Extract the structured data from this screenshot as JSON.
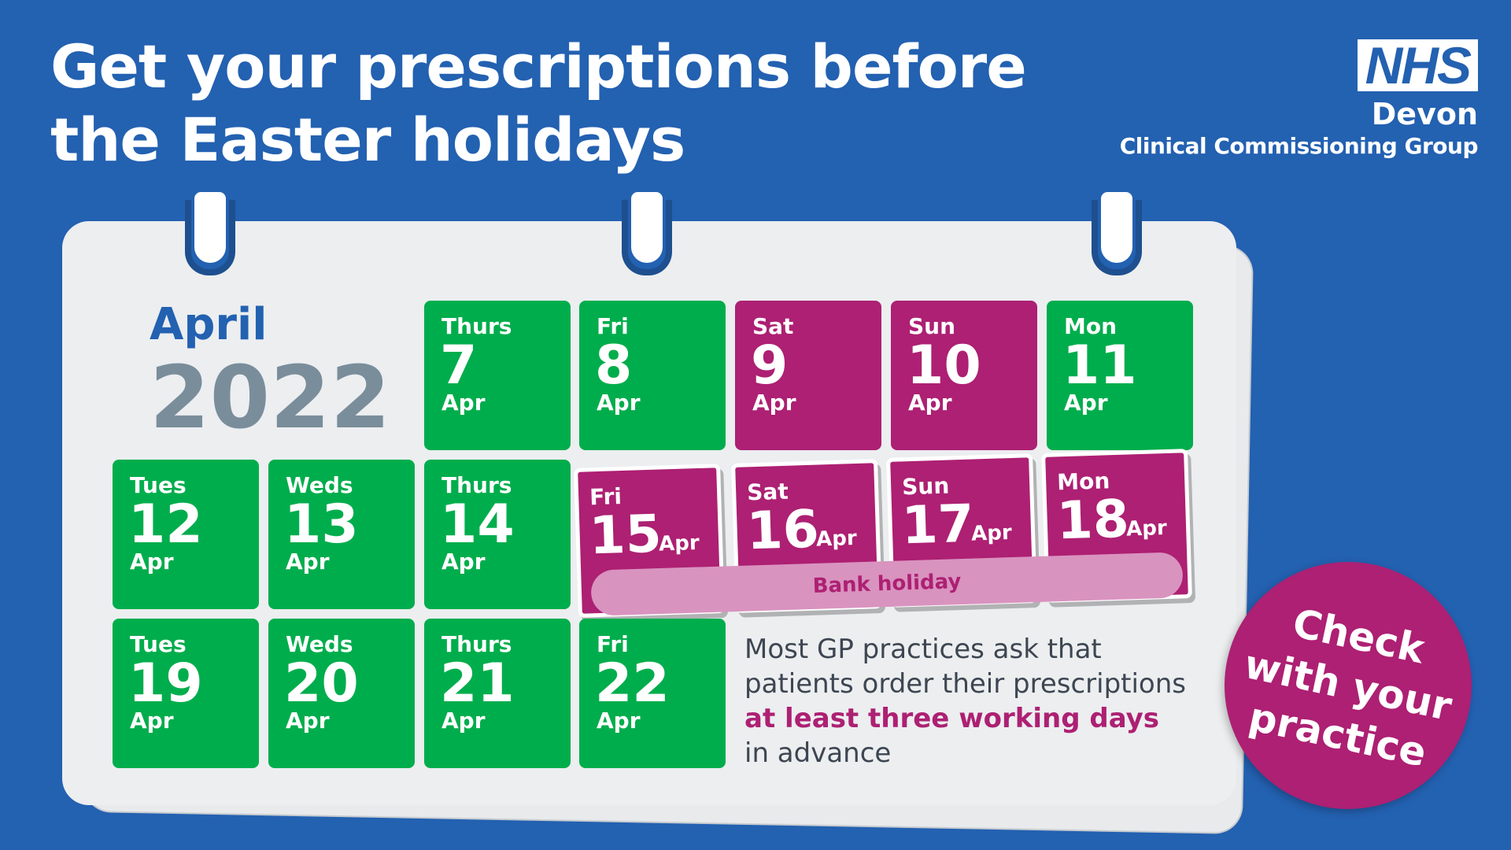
{
  "title": {
    "line1": "Get your prescriptions before",
    "line2": "the Easter holidays"
  },
  "logo": {
    "nhs": "NHS",
    "org": "Devon",
    "group": "Clinical Commissioning Group"
  },
  "calendar": {
    "month": "April",
    "year": "2022",
    "row1": [
      {
        "day": "Thurs",
        "date": "7",
        "month": "Apr",
        "status": "working"
      },
      {
        "day": "Fri",
        "date": "8",
        "month": "Apr",
        "status": "working"
      },
      {
        "day": "Sat",
        "date": "9",
        "month": "Apr",
        "status": "closed"
      },
      {
        "day": "Sun",
        "date": "10",
        "month": "Apr",
        "status": "closed"
      },
      {
        "day": "Mon",
        "date": "11",
        "month": "Apr",
        "status": "working"
      }
    ],
    "row2": [
      {
        "day": "Tues",
        "date": "12",
        "month": "Apr",
        "status": "working"
      },
      {
        "day": "Weds",
        "date": "13",
        "month": "Apr",
        "status": "working"
      },
      {
        "day": "Thurs",
        "date": "14",
        "month": "Apr",
        "status": "working"
      }
    ],
    "bank_holiday_days": [
      {
        "day": "Fri",
        "date": "15",
        "month": "Apr"
      },
      {
        "day": "Sat",
        "date": "16",
        "month": "Apr"
      },
      {
        "day": "Sun",
        "date": "17",
        "month": "Apr"
      },
      {
        "day": "Mon",
        "date": "18",
        "month": "Apr"
      }
    ],
    "bank_holiday_label": "Bank holiday",
    "row3": [
      {
        "day": "Tues",
        "date": "19",
        "month": "Apr",
        "status": "working"
      },
      {
        "day": "Weds",
        "date": "20",
        "month": "Apr",
        "status": "working"
      },
      {
        "day": "Thurs",
        "date": "21",
        "month": "Apr",
        "status": "working"
      },
      {
        "day": "Fri",
        "date": "22",
        "month": "Apr",
        "status": "working"
      }
    ]
  },
  "note": {
    "line1": "Most GP practices ask that",
    "line2": "patients order their prescriptions",
    "highlight": "at least three working days",
    "line4": "in advance"
  },
  "badge": {
    "line1": "Check",
    "line2": "with your",
    "line3": "practice"
  },
  "colors": {
    "background": "#2361b1",
    "working": "#00ad4c",
    "closed": "#ad2073",
    "bank_holiday_bar": "#d993bf",
    "year": "#7a8d9b"
  }
}
